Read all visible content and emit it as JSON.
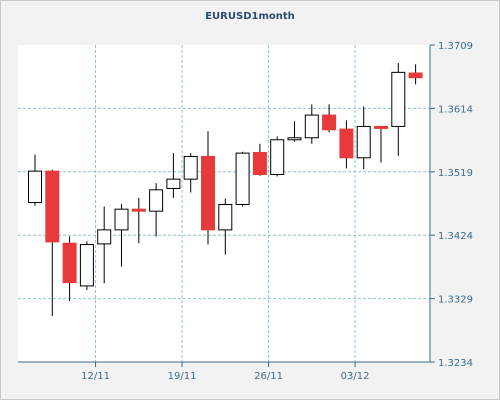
{
  "chart_data": {
    "type": "candlestick",
    "title": "EURUSD1month",
    "ylim": [
      1.3234,
      1.3709
    ],
    "y_ticks": [
      "1.3709",
      "1.3614",
      "1.3519",
      "1.3424",
      "1.3329",
      "1.3234"
    ],
    "x_ticks": [
      {
        "label": "12/11",
        "index": 4
      },
      {
        "label": "19/11",
        "index": 9
      },
      {
        "label": "26/11",
        "index": 14
      },
      {
        "label": "03/12",
        "index": 19
      }
    ],
    "grid": true,
    "colors": {
      "bull": "#ffffff",
      "bear": "#e83a3a",
      "wick": "#000000",
      "grid": "#8fc4d0",
      "axis": "#3a6e8f"
    },
    "candles": [
      {
        "o": 1.3473,
        "h": 1.3545,
        "l": 1.3468,
        "c": 1.352
      },
      {
        "o": 1.352,
        "h": 1.3522,
        "l": 1.3303,
        "c": 1.3414
      },
      {
        "o": 1.3412,
        "h": 1.3422,
        "l": 1.3325,
        "c": 1.3353
      },
      {
        "o": 1.3348,
        "h": 1.3415,
        "l": 1.3342,
        "c": 1.341
      },
      {
        "o": 1.3411,
        "h": 1.3467,
        "l": 1.3352,
        "c": 1.3432
      },
      {
        "o": 1.3432,
        "h": 1.3471,
        "l": 1.3377,
        "c": 1.3463
      },
      {
        "o": 1.3463,
        "h": 1.348,
        "l": 1.3412,
        "c": 1.346
      },
      {
        "o": 1.346,
        "h": 1.3502,
        "l": 1.3422,
        "c": 1.3492
      },
      {
        "o": 1.3494,
        "h": 1.3547,
        "l": 1.348,
        "c": 1.3508
      },
      {
        "o": 1.3508,
        "h": 1.3547,
        "l": 1.3488,
        "c": 1.3542
      },
      {
        "o": 1.3542,
        "h": 1.358,
        "l": 1.341,
        "c": 1.3432
      },
      {
        "o": 1.3432,
        "h": 1.3479,
        "l": 1.3395,
        "c": 1.347
      },
      {
        "o": 1.347,
        "h": 1.3549,
        "l": 1.3467,
        "c": 1.3547
      },
      {
        "o": 1.3548,
        "h": 1.3561,
        "l": 1.3513,
        "c": 1.3515
      },
      {
        "o": 1.3515,
        "h": 1.3572,
        "l": 1.3512,
        "c": 1.3567
      },
      {
        "o": 1.3567,
        "h": 1.3595,
        "l": 1.3564,
        "c": 1.357
      },
      {
        "o": 1.357,
        "h": 1.362,
        "l": 1.3561,
        "c": 1.3604
      },
      {
        "o": 1.3604,
        "h": 1.362,
        "l": 1.3578,
        "c": 1.3582
      },
      {
        "o": 1.3583,
        "h": 1.3596,
        "l": 1.3524,
        "c": 1.354
      },
      {
        "o": 1.354,
        "h": 1.3617,
        "l": 1.3523,
        "c": 1.3587
      },
      {
        "o": 1.3587,
        "h": 1.3588,
        "l": 1.3533,
        "c": 1.3586
      },
      {
        "o": 1.3587,
        "h": 1.3682,
        "l": 1.3543,
        "c": 1.3668
      },
      {
        "o": 1.3667,
        "h": 1.368,
        "l": 1.365,
        "c": 1.366
      }
    ]
  }
}
